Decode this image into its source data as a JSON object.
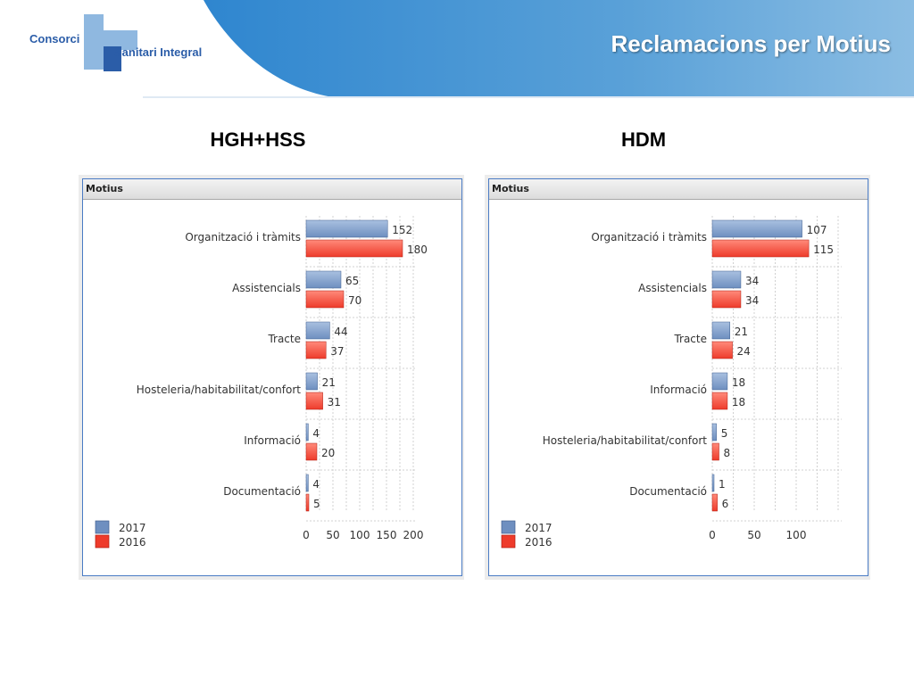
{
  "title": "Reclamacions per Motius",
  "logo": {
    "line1": "Consorci",
    "line2": "Sanitari Integral"
  },
  "colors": {
    "header_blue": "#5f9ed4",
    "bar_2017": "#6e8fc0",
    "bar_2016": "#ee3b2b",
    "logo_blue": "#2b5da8"
  },
  "chart_data": [
    {
      "type": "bar",
      "heading": "HGH+HSS",
      "panel_title": "Motius",
      "categories": [
        "Organització i tràmits",
        "Assistencials",
        "Tracte",
        "Hosteleria/habitabilitat/confort",
        "Informació",
        "Documentació"
      ],
      "series": [
        {
          "name": "2017",
          "values": [
            152,
            65,
            44,
            21,
            4,
            4
          ]
        },
        {
          "name": "2016",
          "values": [
            180,
            70,
            37,
            31,
            20,
            5
          ]
        }
      ],
      "xlim": [
        0,
        200
      ],
      "xticks": [
        "0",
        "50",
        "100",
        "150",
        "200"
      ],
      "legend": "bottom-left",
      "grid": true
    },
    {
      "type": "bar",
      "heading": "HDM",
      "panel_title": "Motius",
      "categories": [
        "Organització i tràmits",
        "Assistencials",
        "Tracte",
        "Informació",
        "Hosteleria/habitabilitat/confort",
        "Documentació"
      ],
      "series": [
        {
          "name": "2017",
          "values": [
            107,
            34,
            21,
            18,
            5,
            1
          ]
        },
        {
          "name": "2016",
          "values": [
            115,
            34,
            24,
            18,
            8,
            6
          ]
        }
      ],
      "xlim": [
        0,
        150
      ],
      "xticks": [
        "0",
        "50",
        "100"
      ],
      "legend": "bottom-left",
      "grid": true
    }
  ]
}
